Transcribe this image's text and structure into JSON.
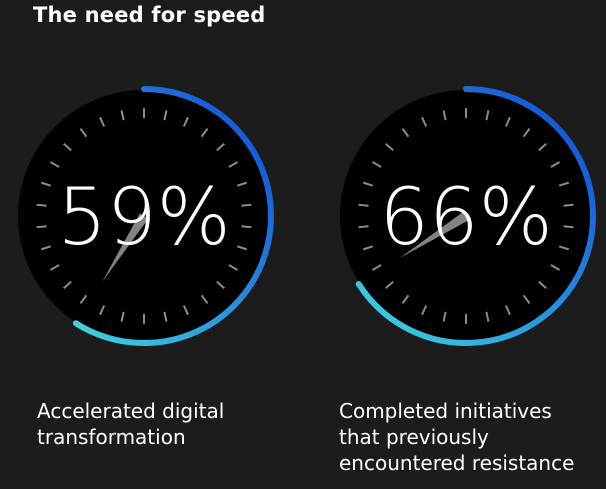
{
  "title": "The need for speed",
  "colors": {
    "background": "#1c1c1d",
    "dial": "#000000",
    "tick": "#8a8a8a",
    "needle": "#9a9a9a",
    "arc_start": "#3fd6e0",
    "arc_end": "#0f45d8"
  },
  "chart_data": [
    {
      "type": "gauge",
      "label_text": "59%",
      "value": 59,
      "unit": "%",
      "range": [
        0,
        100
      ],
      "caption": [
        "Accelerated digital",
        "transformation"
      ]
    },
    {
      "type": "gauge",
      "label_text": "66%",
      "value": 66,
      "unit": "%",
      "range": [
        0,
        100
      ],
      "caption": [
        "Completed initiatives",
        "that previously",
        "encountered resistance"
      ]
    }
  ]
}
